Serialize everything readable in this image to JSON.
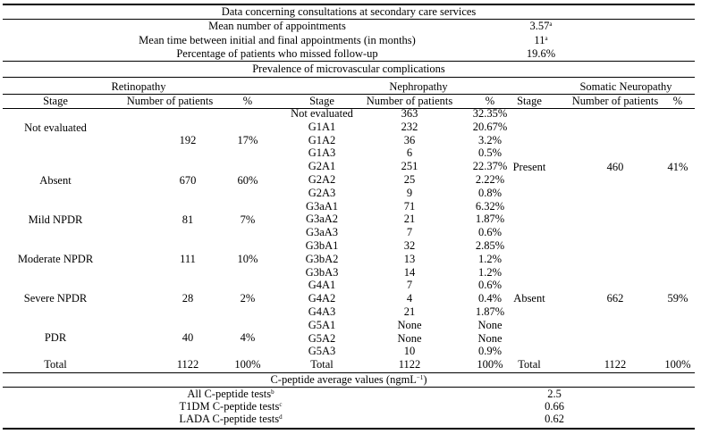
{
  "consultations": {
    "title": "Data concerning consultations at secondary care services",
    "rows": [
      {
        "label": "Mean number of appointments",
        "value": "3.57",
        "note": "a"
      },
      {
        "label": "Mean time between initial and final appointments (in months)",
        "value": "11",
        "note": "a"
      },
      {
        "label": "Percentage of patients who missed follow-up",
        "value": "19.6%",
        "note": ""
      }
    ]
  },
  "prevalence": {
    "title": "Prevalence of microvascular complications",
    "groups": [
      "Retinopathy",
      "Nephropathy",
      "Somatic Neuropathy"
    ],
    "col_headers": {
      "stage": "Stage",
      "number": "Number of patients",
      "percent": "%"
    },
    "retinopathy": [
      {
        "stage": "Not evaluated",
        "number": "192",
        "percent": "17%"
      },
      {
        "stage": "Absent",
        "number": "670",
        "percent": "60%"
      },
      {
        "stage": "Mild NPDR",
        "number": "81",
        "percent": "7%"
      },
      {
        "stage": "Moderate NPDR",
        "number": "111",
        "percent": "10%"
      },
      {
        "stage": "Severe NPDR",
        "number": "28",
        "percent": "2%"
      },
      {
        "stage": "PDR",
        "number": "40",
        "percent": "4%"
      },
      {
        "stage": "Total",
        "number": "1122",
        "percent": "100%"
      }
    ],
    "nephropathy": [
      {
        "stage": "Not evaluated",
        "number": "363",
        "percent": "32.35%"
      },
      {
        "stage": "G1A1",
        "number": "232",
        "percent": "20.67%"
      },
      {
        "stage": "G1A2",
        "number": "36",
        "percent": "3.2%"
      },
      {
        "stage": "G1A3",
        "number": "6",
        "percent": "0.5%"
      },
      {
        "stage": "G2A1",
        "number": "251",
        "percent": "22.37%"
      },
      {
        "stage": "G2A2",
        "number": "25",
        "percent": "2.22%"
      },
      {
        "stage": "G2A3",
        "number": "9",
        "percent": "0.8%"
      },
      {
        "stage": "G3aA1",
        "number": "71",
        "percent": "6.32%"
      },
      {
        "stage": "G3aA2",
        "number": "21",
        "percent": "1.87%"
      },
      {
        "stage": "G3aA3",
        "number": "7",
        "percent": "0.6%"
      },
      {
        "stage": "G3bA1",
        "number": "32",
        "percent": "2.85%"
      },
      {
        "stage": "G3bA2",
        "number": "13",
        "percent": "1.2%"
      },
      {
        "stage": "G3bA3",
        "number": "14",
        "percent": "1.2%"
      },
      {
        "stage": "G4A1",
        "number": "7",
        "percent": "0.6%"
      },
      {
        "stage": "G4A2",
        "number": "4",
        "percent": "0.4%"
      },
      {
        "stage": "G4A3",
        "number": "21",
        "percent": "1.87%"
      },
      {
        "stage": "G5A1",
        "number": "None",
        "percent": "None"
      },
      {
        "stage": "G5A2",
        "number": "None",
        "percent": "None"
      },
      {
        "stage": "G5A3",
        "number": "10",
        "percent": "0.9%"
      },
      {
        "stage": "Total",
        "number": "1122",
        "percent": "100%"
      }
    ],
    "neuropathy": [
      {
        "stage": "Present",
        "number": "460",
        "percent": "41%"
      },
      {
        "stage": "Absent",
        "number": "662",
        "percent": "59%"
      },
      {
        "stage": "Total",
        "number": "1122",
        "percent": "100%"
      }
    ]
  },
  "cpeptide": {
    "title": "C-peptide average values (ngmL",
    "title_sup": "−1",
    "title_end": ")",
    "rows": [
      {
        "label": "All C-peptide tests",
        "note": "b",
        "value": "2.5"
      },
      {
        "label": "T1DM C-peptide tests",
        "note": "c",
        "value": "0.66"
      },
      {
        "label": "LADA C-peptide tests",
        "note": "d",
        "value": "0.62"
      }
    ]
  }
}
